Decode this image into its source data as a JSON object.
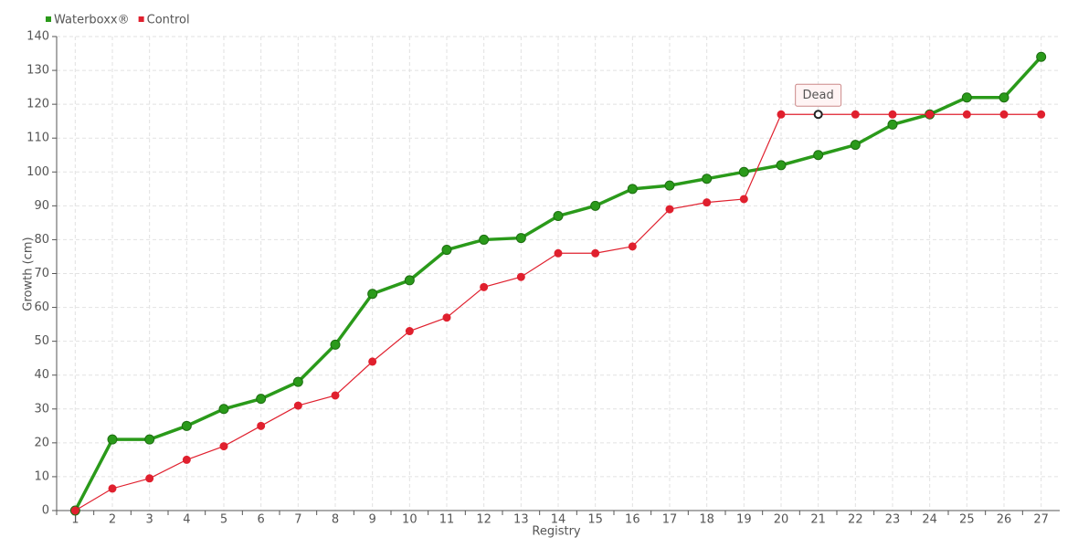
{
  "chart_data": {
    "type": "line",
    "x_label": "Registry",
    "y_label": "Growth (cm)",
    "categories": [
      "1",
      "2",
      "3",
      "4",
      "5",
      "6",
      "7",
      "8",
      "9",
      "10",
      "11",
      "12",
      "13",
      "14",
      "15",
      "16",
      "17",
      "18",
      "19",
      "20",
      "21",
      "22",
      "23",
      "24",
      "25",
      "26",
      "27"
    ],
    "series": [
      {
        "name": "Waterboxx®",
        "color": "#2a9a1a",
        "values": [
          0,
          21,
          21,
          25,
          30,
          33,
          38,
          49,
          64,
          68,
          77,
          80,
          80.5,
          87,
          90,
          95,
          96,
          98,
          100,
          102,
          105,
          108,
          114,
          117,
          122,
          122,
          134
        ]
      },
      {
        "name": "Control",
        "color": "#e0202e",
        "values": [
          0,
          6.5,
          9.5,
          15,
          19,
          25,
          31,
          34,
          44,
          53,
          57,
          66,
          69,
          76,
          76,
          78,
          89,
          91,
          92,
          117,
          117,
          117,
          117,
          117,
          117,
          117,
          117
        ],
        "annotations": [
          null,
          null,
          null,
          null,
          null,
          null,
          null,
          null,
          null,
          null,
          null,
          null,
          null,
          null,
          null,
          null,
          null,
          null,
          null,
          null,
          "Dead",
          null,
          null,
          null,
          null,
          null,
          null
        ]
      }
    ],
    "ylim": [
      0,
      140
    ],
    "yticks": [
      0,
      10,
      20,
      30,
      40,
      50,
      60,
      70,
      80,
      90,
      100,
      110,
      120,
      130,
      140
    ],
    "grid": true,
    "legend": "top-left"
  }
}
